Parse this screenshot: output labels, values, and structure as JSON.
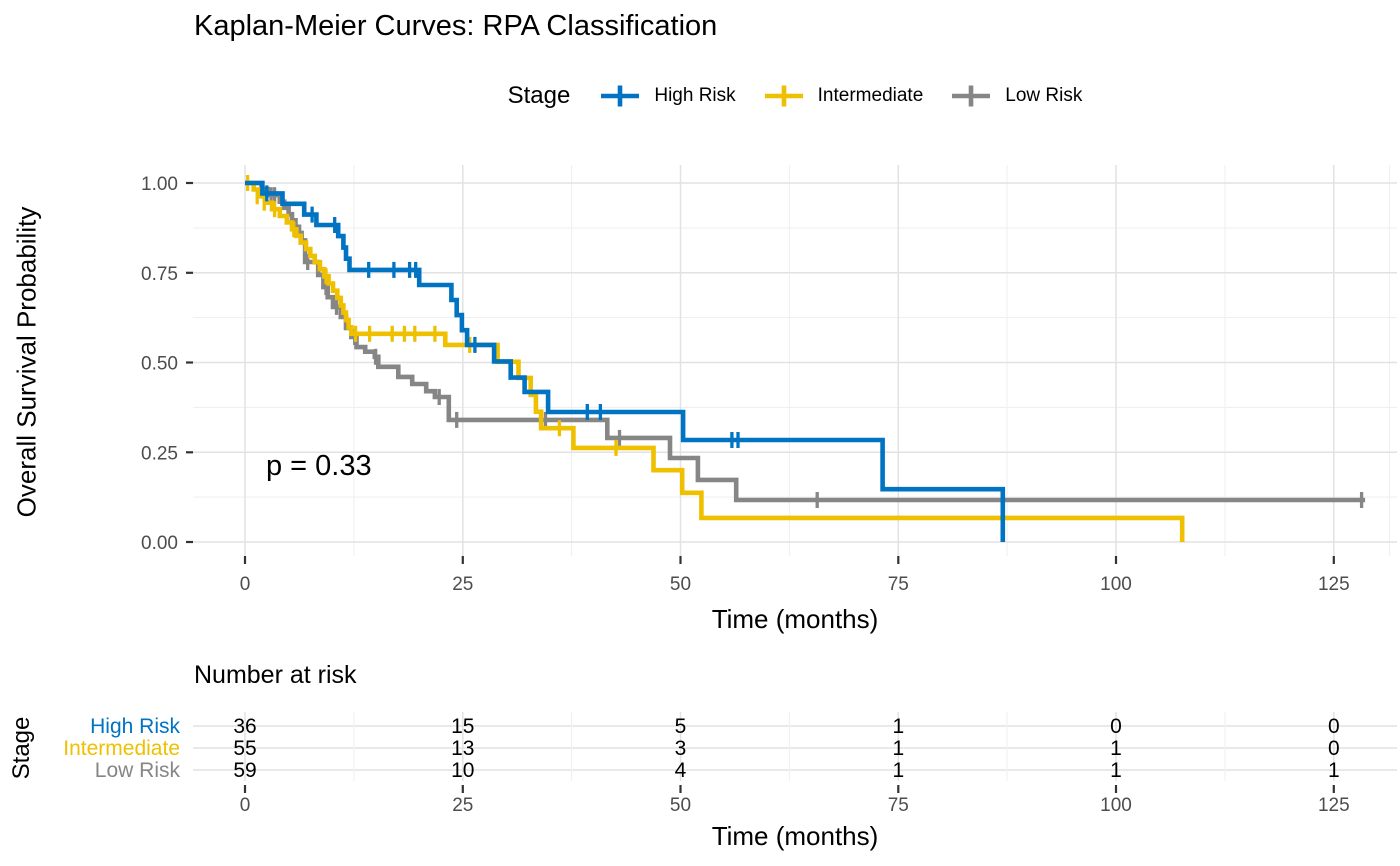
{
  "title": "Kaplan-Meier Curves: RPA Classification",
  "p_value": "p = 0.33",
  "legend": {
    "title": "Stage",
    "entries": [
      {
        "label": "High Risk",
        "color": "#0073C2"
      },
      {
        "label": "Intermediate",
        "color": "#EFC000"
      },
      {
        "label": "Low Risk",
        "color": "#868686"
      }
    ]
  },
  "axes": {
    "x_label": "Time (months)",
    "y_label": "Overall Survival Probability"
  },
  "colors": {
    "grid_major": "#E2E2E2",
    "grid_minor": "#F0F0F0",
    "tick_mark": "#333333",
    "tick_label": "#4D4D4D",
    "text": "#000000"
  },
  "chart_data": {
    "type": "line",
    "subtype": "kaplan-meier-step",
    "title": "Kaplan-Meier Curves: RPA Classification",
    "xlabel": "Time (months)",
    "ylabel": "Overall Survival Probability",
    "xlim": [
      0,
      132
    ],
    "ylim": [
      0,
      1
    ],
    "x_ticks": [
      0,
      25,
      50,
      75,
      100,
      125
    ],
    "x_minor_ticks": [
      12.5,
      37.5,
      62.5,
      87.5,
      112.5,
      131.4
    ],
    "y_ticks": [
      {
        "label": "0.00",
        "value": 0.0
      },
      {
        "label": "0.25",
        "value": 0.25
      },
      {
        "label": "0.50",
        "value": 0.5
      },
      {
        "label": "0.75",
        "value": 0.75
      },
      {
        "label": "1.00",
        "value": 1.0
      }
    ],
    "y_minor_ticks": [
      0.125,
      0.375,
      0.625,
      0.875
    ],
    "grid": true,
    "legend_position": "top",
    "annotation": "p = 0.33",
    "series": [
      {
        "name": "High Risk",
        "color": "#0073C2",
        "steps": [
          [
            0,
            1.0
          ],
          [
            2,
            0.971
          ],
          [
            4.3,
            0.942
          ],
          [
            6.8,
            0.912
          ],
          [
            8.2,
            0.883
          ],
          [
            10.7,
            0.852
          ],
          [
            11.3,
            0.82
          ],
          [
            11.6,
            0.789
          ],
          [
            12,
            0.758
          ],
          [
            20,
            0.716
          ],
          [
            23.7,
            0.674
          ],
          [
            24.3,
            0.632
          ],
          [
            24.9,
            0.59
          ],
          [
            25.5,
            0.549
          ],
          [
            28.6,
            0.503
          ],
          [
            30.5,
            0.458
          ],
          [
            32.1,
            0.418
          ],
          [
            34.8,
            0.362
          ],
          [
            50.3,
            0.284
          ],
          [
            73.2,
            0.147
          ],
          [
            87,
            0
          ]
        ],
        "censors": [
          [
            2.5,
            0.971
          ],
          [
            7.7,
            0.912
          ],
          [
            10.3,
            0.883
          ],
          [
            14.2,
            0.758
          ],
          [
            17.1,
            0.758
          ],
          [
            18.9,
            0.758
          ],
          [
            19.6,
            0.758
          ],
          [
            26.4,
            0.549
          ],
          [
            39.3,
            0.362
          ],
          [
            40.8,
            0.362
          ],
          [
            55.9,
            0.284
          ],
          [
            56.6,
            0.284
          ]
        ]
      },
      {
        "name": "Intermediate",
        "color": "#EFC000",
        "steps": [
          [
            0,
            1.0
          ],
          [
            1,
            0.982
          ],
          [
            1.7,
            0.963
          ],
          [
            2.4,
            0.945
          ],
          [
            3.1,
            0.927
          ],
          [
            4,
            0.908
          ],
          [
            4.8,
            0.89
          ],
          [
            5.4,
            0.871
          ],
          [
            5.9,
            0.853
          ],
          [
            6.4,
            0.834
          ],
          [
            7,
            0.816
          ],
          [
            7.5,
            0.797
          ],
          [
            8,
            0.779
          ],
          [
            8.6,
            0.76
          ],
          [
            9.1,
            0.74
          ],
          [
            9.6,
            0.72
          ],
          [
            10.1,
            0.7
          ],
          [
            10.6,
            0.68
          ],
          [
            11,
            0.659
          ],
          [
            11.3,
            0.639
          ],
          [
            11.6,
            0.618
          ],
          [
            11.9,
            0.598
          ],
          [
            12.2,
            0.58
          ],
          [
            23,
            0.549
          ],
          [
            29,
            0.502
          ],
          [
            31.4,
            0.457
          ],
          [
            32.8,
            0.41
          ],
          [
            33.4,
            0.363
          ],
          [
            34,
            0.317
          ],
          [
            37.7,
            0.262
          ],
          [
            46.9,
            0.2
          ],
          [
            50.2,
            0.137
          ],
          [
            52.4,
            0.067
          ],
          [
            107.6,
            0
          ]
        ],
        "censors": [
          [
            0.3,
            1.0
          ],
          [
            1.4,
            0.963
          ],
          [
            2.2,
            0.945
          ],
          [
            3.4,
            0.927
          ],
          [
            5.6,
            0.871
          ],
          [
            9.3,
            0.74
          ],
          [
            12.7,
            0.58
          ],
          [
            14.3,
            0.58
          ],
          [
            16.9,
            0.58
          ],
          [
            18.3,
            0.58
          ],
          [
            19.5,
            0.58
          ],
          [
            21.8,
            0.58
          ],
          [
            25.8,
            0.549
          ],
          [
            36.1,
            0.317
          ],
          [
            42.6,
            0.262
          ]
        ]
      },
      {
        "name": "Low Risk",
        "color": "#868686",
        "steps": [
          [
            0,
            1.0
          ],
          [
            1.9,
            0.983
          ],
          [
            2.6,
            0.966
          ],
          [
            4,
            0.948
          ],
          [
            4.5,
            0.931
          ],
          [
            5,
            0.913
          ],
          [
            5.4,
            0.896
          ],
          [
            5.8,
            0.878
          ],
          [
            6.2,
            0.861
          ],
          [
            6.5,
            0.84
          ],
          [
            6.9,
            0.78
          ],
          [
            8.4,
            0.744
          ],
          [
            9,
            0.71
          ],
          [
            9.5,
            0.682
          ],
          [
            10.1,
            0.655
          ],
          [
            11,
            0.627
          ],
          [
            11.6,
            0.596
          ],
          [
            12.2,
            0.571
          ],
          [
            12.8,
            0.543
          ],
          [
            13.8,
            0.53
          ],
          [
            14.9,
            0.516
          ],
          [
            15.3,
            0.488
          ],
          [
            17.6,
            0.46
          ],
          [
            19.2,
            0.44
          ],
          [
            20.8,
            0.42
          ],
          [
            21.8,
            0.404
          ],
          [
            23.4,
            0.34
          ],
          [
            41.6,
            0.29
          ],
          [
            48.8,
            0.234
          ],
          [
            52,
            0.173
          ],
          [
            56.4,
            0.117
          ],
          [
            128.6,
            0.117
          ]
        ],
        "censors": [
          [
            3.0,
            0.966
          ],
          [
            3.4,
            0.966
          ],
          [
            7.2,
            0.78
          ],
          [
            9.3,
            0.71
          ],
          [
            10.5,
            0.655
          ],
          [
            12.6,
            0.571
          ],
          [
            15,
            0.516
          ],
          [
            22.3,
            0.404
          ],
          [
            24.3,
            0.34
          ],
          [
            34.5,
            0.34
          ],
          [
            43,
            0.29
          ],
          [
            65.7,
            0.117
          ],
          [
            128.2,
            0.117
          ]
        ]
      }
    ]
  },
  "risk_table": {
    "title": "Number at risk",
    "group_label": "Stage",
    "x_label": "Time (months)",
    "time_points": [
      0,
      25,
      50,
      75,
      100,
      125
    ],
    "rows": [
      {
        "name": "High Risk",
        "color": "#0073C2",
        "counts": [
          36,
          15,
          5,
          1,
          0,
          0
        ]
      },
      {
        "name": "Intermediate",
        "color": "#EFC000",
        "counts": [
          55,
          13,
          3,
          1,
          1,
          0
        ]
      },
      {
        "name": "Low Risk",
        "color": "#868686",
        "counts": [
          59,
          10,
          4,
          1,
          1,
          1
        ]
      }
    ]
  }
}
